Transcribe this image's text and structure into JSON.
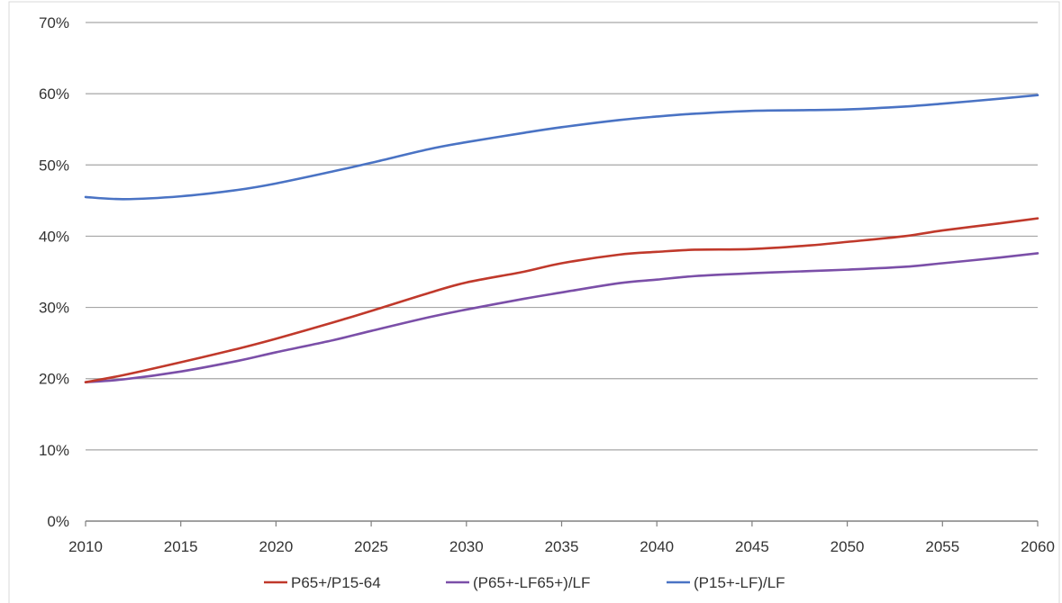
{
  "chart_data": {
    "type": "line",
    "title": "",
    "xlabel": "",
    "ylabel": "",
    "xlim": [
      2010,
      2060
    ],
    "ylim": [
      0,
      70
    ],
    "x_ticks": [
      "2010",
      "2015",
      "2020",
      "2025",
      "2030",
      "2035",
      "2040",
      "2045",
      "2050",
      "2055",
      "2060"
    ],
    "y_ticks": [
      "0%",
      "10%",
      "20%",
      "30%",
      "40%",
      "50%",
      "60%",
      "70%"
    ],
    "grid": true,
    "legend_position": "bottom",
    "series": [
      {
        "name": "P65+/P15-64",
        "color": "#c0392b",
        "x": [
          2010,
          2012,
          2015,
          2018,
          2020,
          2023,
          2025,
          2028,
          2030,
          2033,
          2035,
          2038,
          2040,
          2042,
          2045,
          2048,
          2050,
          2053,
          2055,
          2058,
          2060
        ],
        "y": [
          19.5,
          20.5,
          22.3,
          24.2,
          25.6,
          27.9,
          29.5,
          32.0,
          33.5,
          35.0,
          36.2,
          37.4,
          37.8,
          38.1,
          38.2,
          38.7,
          39.2,
          40.0,
          40.8,
          41.8,
          42.5
        ]
      },
      {
        "name": "(P65+-LF65+)/LF",
        "color": "#7b4fa8",
        "x": [
          2010,
          2012,
          2015,
          2018,
          2020,
          2023,
          2025,
          2028,
          2030,
          2033,
          2035,
          2038,
          2040,
          2042,
          2045,
          2048,
          2050,
          2053,
          2055,
          2058,
          2060
        ],
        "y": [
          19.5,
          19.9,
          21.0,
          22.5,
          23.7,
          25.4,
          26.7,
          28.6,
          29.7,
          31.2,
          32.1,
          33.4,
          33.9,
          34.4,
          34.8,
          35.1,
          35.3,
          35.7,
          36.2,
          37.0,
          37.6
        ]
      },
      {
        "name": "(P15+-LF)/LF",
        "color": "#4a73c4",
        "x": [
          2010,
          2012,
          2015,
          2018,
          2020,
          2023,
          2025,
          2028,
          2030,
          2033,
          2035,
          2038,
          2040,
          2042,
          2045,
          2048,
          2050,
          2053,
          2055,
          2058,
          2060
        ],
        "y": [
          45.5,
          45.2,
          45.6,
          46.5,
          47.4,
          49.1,
          50.3,
          52.2,
          53.2,
          54.5,
          55.3,
          56.3,
          56.8,
          57.2,
          57.6,
          57.7,
          57.8,
          58.2,
          58.6,
          59.3,
          59.8
        ]
      }
    ]
  }
}
